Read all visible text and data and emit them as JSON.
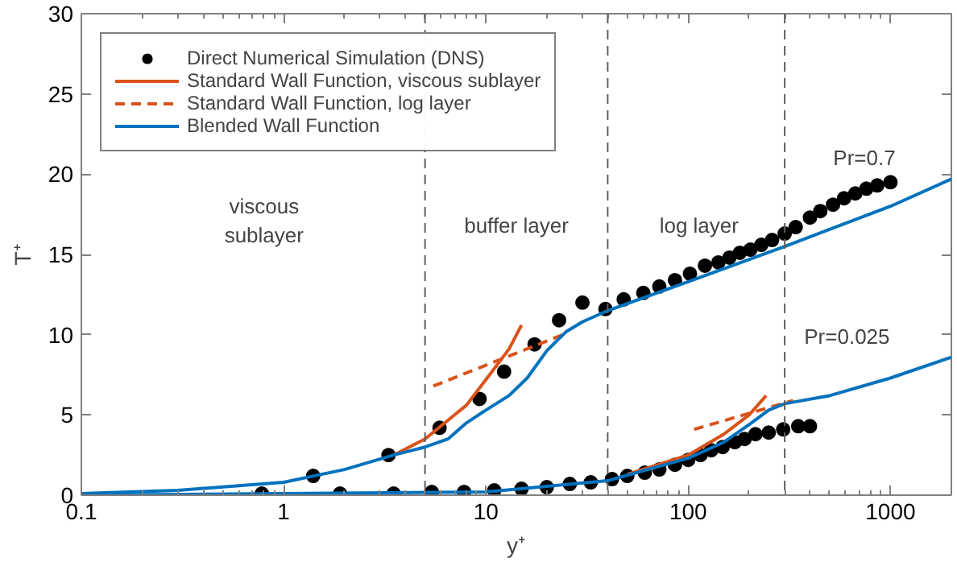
{
  "chart_data": {
    "type": "line",
    "xlabel": "y⁺",
    "ylabel": "T⁺",
    "log": "x",
    "xlim": [
      0.1,
      2000
    ],
    "xticks": [
      0.1,
      1,
      10,
      100,
      1000
    ],
    "ylim": [
      0,
      30
    ],
    "yticks": [
      0,
      5,
      10,
      15,
      20,
      25,
      30
    ],
    "grid": false,
    "legend": "top left",
    "series": [
      {
        "name": "Direct Numerical Simulation (DNS)",
        "type": "scatter",
        "marker": "circle",
        "color": "#000000",
        "x": [
          1.4,
          3.3,
          5.9,
          9.3,
          12.3,
          17.4,
          23,
          30,
          39,
          48,
          60,
          72,
          86,
          102,
          121,
          141,
          160,
          180,
          203,
          230,
          260,
          300,
          340,
          400,
          450,
          520,
          590,
          670,
          760,
          860,
          1000
        ],
        "values": [
          1.2,
          2.5,
          4.2,
          6.0,
          7.7,
          9.4,
          10.9,
          12.0,
          11.6,
          12.2,
          12.6,
          13.0,
          13.4,
          13.8,
          14.3,
          14.5,
          14.8,
          15.1,
          15.3,
          15.6,
          15.9,
          16.3,
          16.7,
          17.3,
          17.7,
          18.1,
          18.5,
          18.8,
          19.1,
          19.3,
          19.5
        ]
      },
      {
        "type": "scatter",
        "marker": "circle",
        "color": "#000000",
        "x": [
          0.78,
          1.9,
          3.5,
          5.4,
          7.8,
          11,
          15,
          20,
          26,
          33,
          42,
          50,
          61,
          72,
          86,
          100,
          115,
          130,
          148,
          170,
          190,
          215,
          250,
          295,
          350,
          400
        ],
        "values": [
          0.1,
          0.1,
          0.1,
          0.2,
          0.2,
          0.3,
          0.4,
          0.5,
          0.7,
          0.8,
          1.0,
          1.2,
          1.4,
          1.6,
          1.9,
          2.2,
          2.5,
          2.8,
          3.0,
          3.3,
          3.5,
          3.8,
          3.9,
          4.1,
          4.3,
          4.3
        ]
      },
      {
        "name": "Standard Wall Function, viscous sublayer",
        "line_style": "solid",
        "color": "#d95319",
        "x": [
          3.5,
          5,
          8,
          10,
          13,
          15
        ],
        "values": [
          2.5,
          3.5,
          5.6,
          7.2,
          9.1,
          10.6
        ]
      },
      {
        "line_style": "solid",
        "color": "#d95319",
        "x": [
          50,
          100,
          150,
          200,
          243
        ],
        "values": [
          1.3,
          2.5,
          3.8,
          5.0,
          6.2
        ]
      },
      {
        "name": "Standard Wall Function, log layer",
        "line_style": "dashed",
        "color": "#d95319",
        "x": [
          5.5,
          24
        ],
        "values": [
          6.8,
          10.0
        ]
      },
      {
        "line_style": "dashed",
        "color": "#d95319",
        "x": [
          107,
          330
        ],
        "values": [
          4.1,
          5.9
        ]
      },
      {
        "name": "Blended Wall Function",
        "line_style": "solid",
        "color": "#0072bd",
        "x": [
          0.1,
          0.3,
          1,
          2,
          3.5,
          5,
          6.5,
          8,
          10,
          13,
          16,
          20,
          25,
          30,
          40,
          100,
          300,
          1000,
          2000
        ],
        "values": [
          0.1,
          0.3,
          0.8,
          1.6,
          2.5,
          3.0,
          3.5,
          4.5,
          5.3,
          6.2,
          7.3,
          9.0,
          10.2,
          10.8,
          11.5,
          13.3,
          15.5,
          18.0,
          19.7
        ]
      },
      {
        "line_style": "solid",
        "color": "#0072bd",
        "x": [
          0.1,
          10,
          40,
          100,
          150,
          200,
          250,
          300,
          500,
          1000,
          2000
        ],
        "values": [
          0.0,
          0.2,
          0.9,
          2.3,
          3.3,
          4.4,
          5.3,
          5.7,
          6.2,
          7.3,
          8.6
        ]
      }
    ],
    "ref_lines": [
      {
        "axis": "x",
        "value": 5,
        "color": "#606060",
        "line_style": "dashed"
      },
      {
        "axis": "x",
        "value": 40,
        "color": "#606060",
        "line_style": "dashed"
      },
      {
        "axis": "x",
        "value": 300,
        "color": "#606060",
        "line_style": "dashed"
      }
    ],
    "annotations": [
      "viscous\nsublayer",
      "buffer layer",
      "log layer",
      "Pr=0.7",
      "Pr=0.025"
    ]
  }
}
